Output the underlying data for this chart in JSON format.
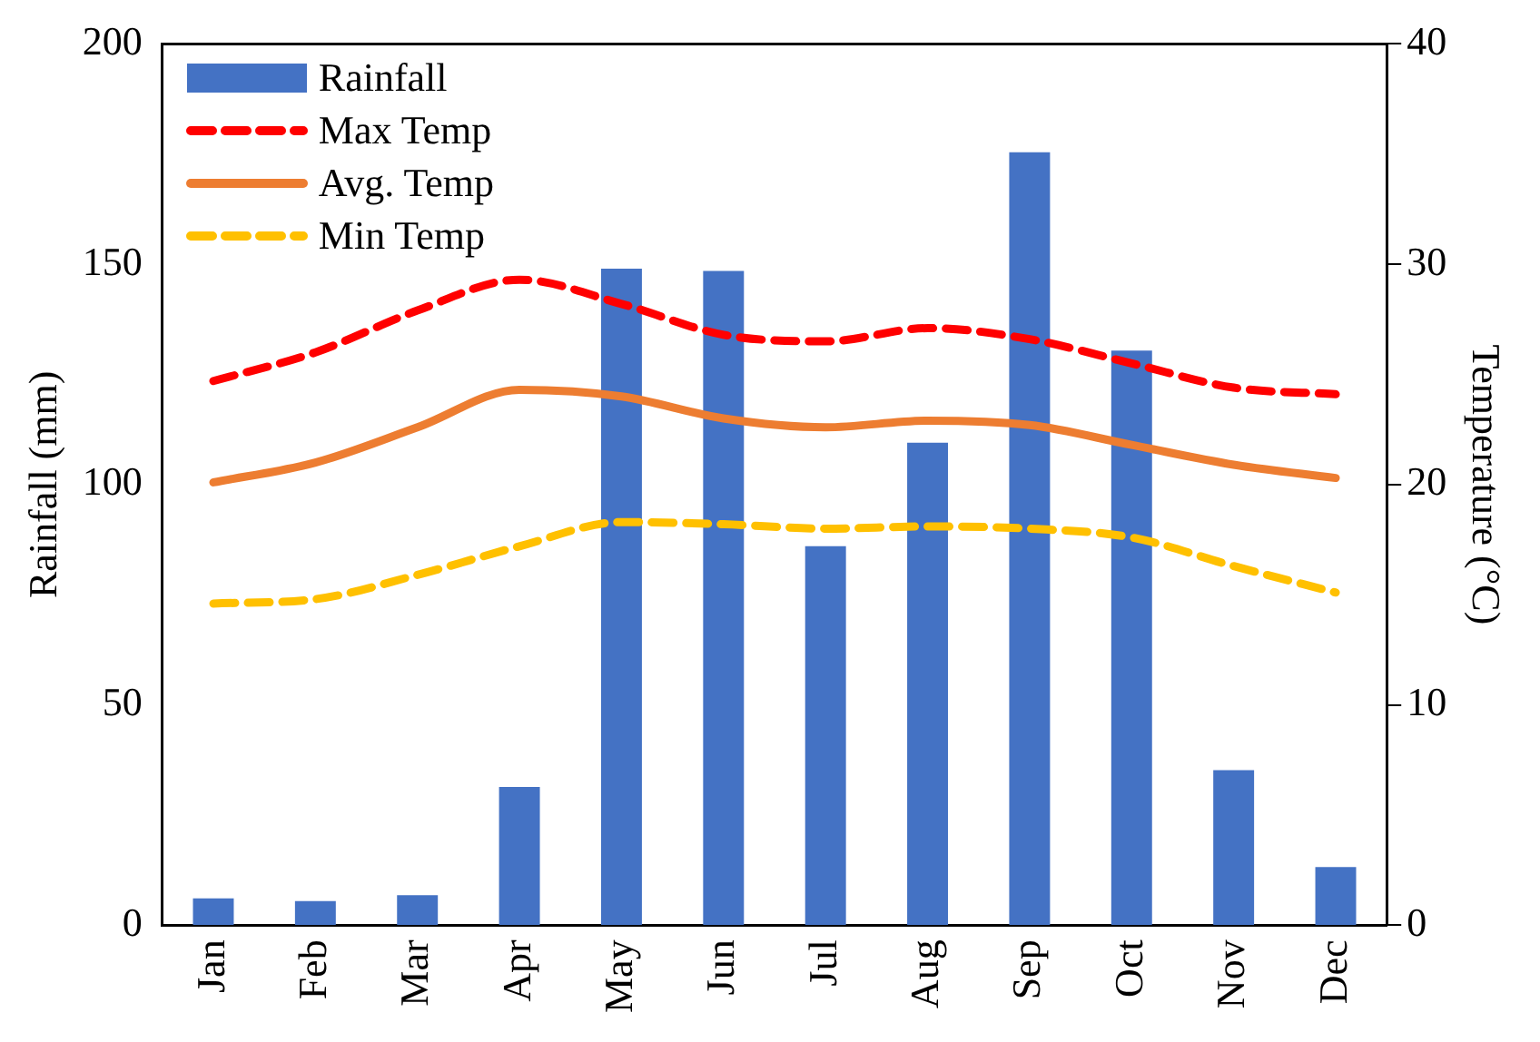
{
  "chart_data": {
    "type": "bar",
    "ylabel": "Rainfall (mm)",
    "y2label": "Temperature (°C)",
    "categories": [
      "Jan",
      "Feb",
      "Mar",
      "Apr",
      "May",
      "Jun",
      "Jul",
      "Aug",
      "Sep",
      "Oct",
      "Nov",
      "Dec"
    ],
    "series": [
      {
        "name": "Rainfall",
        "color": "#4472c4",
        "values": [
          6.1,
          5.5,
          6.8,
          31.4,
          149,
          148.5,
          86,
          109.5,
          175.4,
          130.4,
          35.2,
          13.2
        ]
      },
      {
        "name": "Max Temp",
        "type": "line",
        "axis": "y2",
        "line_style": "dashed",
        "color": "#ff0000",
        "values": [
          24.7,
          26.0,
          27.9,
          29.3,
          28.2,
          26.8,
          26.5,
          27.1,
          26.6,
          25.5,
          24.4,
          24.1
        ]
      },
      {
        "name": "Avg. Temp",
        "type": "line",
        "axis": "y2",
        "line_style": "solid",
        "color": "#ed7d31",
        "values": [
          20.1,
          21.0,
          22.6,
          24.3,
          24.0,
          23.0,
          22.6,
          22.9,
          22.7,
          21.8,
          20.9,
          20.3
        ]
      },
      {
        "name": "Min Temp",
        "type": "line",
        "axis": "y2",
        "line_style": "dashed",
        "color": "#ffc000",
        "values": [
          14.6,
          14.8,
          15.9,
          17.2,
          18.3,
          18.2,
          18.0,
          18.1,
          18.0,
          17.6,
          16.3,
          15.1
        ]
      }
    ],
    "ylim": [
      0,
      200
    ],
    "yticks": [
      0,
      50,
      100,
      150,
      200
    ],
    "y2lim": [
      0,
      40
    ],
    "y2ticks": [
      0,
      10,
      20,
      30,
      40
    ],
    "grid": false,
    "legend": "top left",
    "marker": "none"
  }
}
